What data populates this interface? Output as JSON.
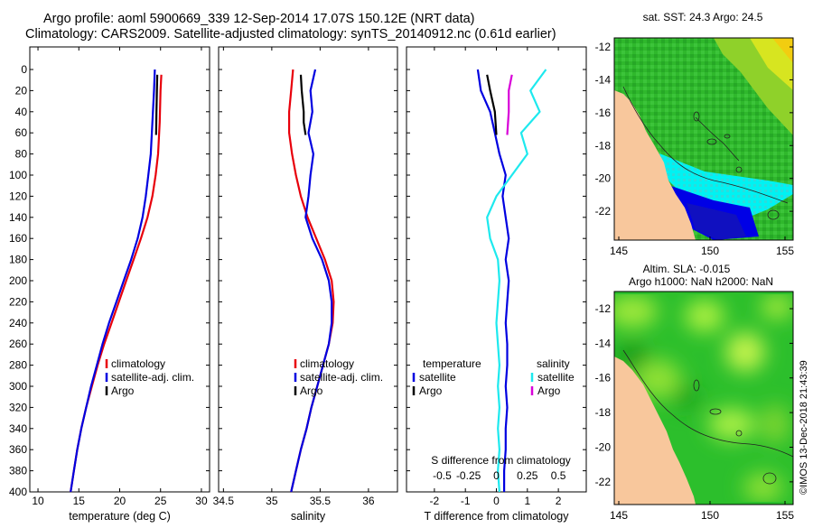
{
  "header": {
    "line1": "Argo profile: aoml 5900669_339 12-Sep-2014 17.07S 150.12E (NRT data)",
    "line2": "Climatology: CARS2009. Satellite-adjusted climatology: synTS_20140912.nc (0.61d earlier)"
  },
  "credit": "©IMOS 13-Dec-2018 21:43:39",
  "colors": {
    "climatology": "#e8000b",
    "satellite": "#0000e0",
    "argo": "#000000",
    "satellite_s": "#1de9ee",
    "argo_s": "#d800d8"
  },
  "depth_ticks": [
    0,
    20,
    40,
    60,
    80,
    100,
    120,
    140,
    160,
    180,
    200,
    220,
    240,
    260,
    280,
    300,
    320,
    340,
    360,
    380,
    400
  ],
  "chart_data": [
    {
      "id": "temperature",
      "type": "line",
      "xlabel": "temperature (deg C)",
      "xlim": [
        9,
        31
      ],
      "ylim": [
        0,
        400
      ],
      "xticks": [
        10,
        15,
        20,
        25,
        30
      ],
      "series": [
        {
          "name": "climatology",
          "color": "#e8000b",
          "x": [
            25.1,
            25.0,
            24.9,
            24.7,
            24.4,
            24.0,
            23.4,
            22.6,
            21.7,
            20.8,
            19.9,
            19.0,
            18.1,
            17.3,
            16.6,
            15.9,
            15.3,
            14.8,
            14.4,
            14.0
          ],
          "y": [
            5,
            20,
            50,
            80,
            100,
            120,
            140,
            160,
            180,
            200,
            220,
            240,
            260,
            280,
            300,
            320,
            340,
            360,
            380,
            400
          ]
        },
        {
          "name": "satellite-adj. clim.",
          "color": "#0000e0",
          "x": [
            24.3,
            24.2,
            24.0,
            23.8,
            23.5,
            23.2,
            22.8,
            22.2,
            21.4,
            20.5,
            19.6,
            18.7,
            17.9,
            17.2,
            16.5,
            15.9,
            15.3,
            14.8,
            14.4,
            14.0
          ],
          "y": [
            0,
            20,
            50,
            80,
            100,
            120,
            140,
            160,
            180,
            200,
            220,
            240,
            260,
            280,
            300,
            320,
            340,
            360,
            380,
            400
          ]
        },
        {
          "name": "Argo",
          "color": "#000000",
          "x": [
            24.6,
            24.55,
            24.5,
            24.45
          ],
          "y": [
            5,
            20,
            40,
            62
          ]
        }
      ],
      "legend": [
        "climatology",
        "satellite-adj. clim.",
        "Argo"
      ]
    },
    {
      "id": "salinity",
      "type": "line",
      "xlabel": "salinity",
      "xlim": [
        34.45,
        36.3
      ],
      "ylim": [
        0,
        400
      ],
      "xticks": [
        34.5,
        35,
        35.5,
        36
      ],
      "xticklabels": [
        "34.5",
        "35",
        "35.5",
        "36"
      ],
      "series": [
        {
          "name": "climatology",
          "color": "#e8000b",
          "x": [
            35.22,
            35.2,
            35.18,
            35.18,
            35.21,
            35.25,
            35.3,
            35.37,
            35.46,
            35.55,
            35.62,
            35.64,
            35.63,
            35.59,
            35.53,
            35.47,
            35.41,
            35.36,
            35.3,
            35.25,
            35.2
          ],
          "y": [
            0,
            20,
            40,
            60,
            80,
            100,
            120,
            140,
            160,
            180,
            200,
            220,
            240,
            260,
            280,
            300,
            320,
            340,
            360,
            380,
            400
          ]
        },
        {
          "name": "satellite-adj. clim.",
          "color": "#0000e0",
          "x": [
            35.45,
            35.4,
            35.42,
            35.38,
            35.43,
            35.4,
            35.38,
            35.35,
            35.42,
            35.52,
            35.59,
            35.62,
            35.62,
            35.59,
            35.53,
            35.47,
            35.41,
            35.36,
            35.3,
            35.25,
            35.2
          ],
          "y": [
            0,
            20,
            40,
            60,
            80,
            100,
            120,
            140,
            160,
            180,
            200,
            220,
            240,
            260,
            280,
            300,
            320,
            340,
            360,
            380,
            400
          ]
        },
        {
          "name": "Argo",
          "color": "#000000",
          "x": [
            35.3,
            35.31,
            35.33,
            35.33,
            35.35
          ],
          "y": [
            5,
            20,
            40,
            50,
            62
          ]
        }
      ],
      "legend": [
        "climatology",
        "satellite-adj. clim.",
        "Argo"
      ]
    },
    {
      "id": "difference",
      "type": "line",
      "xlabel": "T difference from climatology",
      "xlabel_top": "S difference from climatology",
      "xlim": [
        -2.9,
        2.9
      ],
      "ylim": [
        0,
        400
      ],
      "xticks": [
        -2,
        -1,
        0,
        1,
        2
      ],
      "top_ticks": [
        {
          "pos": -1.75,
          "label": "-0.5"
        },
        {
          "pos": -0.9,
          "label": "-0.25"
        },
        {
          "pos": 0,
          "label": "0"
        },
        {
          "pos": 1,
          "label": "0.25"
        },
        {
          "pos": 2,
          "label": "0.5"
        }
      ],
      "series": [
        {
          "name": "temperature satellite",
          "color": "#0000e0",
          "x": [
            -0.6,
            -0.5,
            -0.2,
            -0.05,
            0.1,
            0.3,
            0.2,
            0.3,
            0.4,
            0.3,
            0.4,
            0.35,
            0.3,
            0.35,
            0.35,
            0.3,
            0.35,
            0.3,
            0.3,
            0.25,
            0.25
          ],
          "y": [
            0,
            20,
            40,
            60,
            80,
            100,
            120,
            140,
            160,
            180,
            200,
            220,
            240,
            260,
            280,
            300,
            320,
            340,
            360,
            380,
            400
          ]
        },
        {
          "name": "temperature Argo",
          "color": "#000000",
          "x": [
            -0.3,
            -0.2,
            -0.05,
            0.0
          ],
          "y": [
            5,
            20,
            40,
            62
          ]
        },
        {
          "name": "salinity satellite",
          "color": "#1de9ee",
          "x": [
            1.6,
            1.1,
            1.4,
            0.8,
            1.0,
            0.5,
            0.0,
            -0.3,
            -0.2,
            0.05,
            0.1,
            0.05,
            0.0,
            0.05,
            0.1,
            0.05,
            0.1,
            0.05,
            0.1,
            0.05,
            0.1
          ],
          "y": [
            0,
            20,
            40,
            60,
            80,
            100,
            120,
            140,
            160,
            180,
            200,
            220,
            240,
            260,
            280,
            300,
            320,
            340,
            360,
            380,
            400
          ]
        },
        {
          "name": "salinity Argo",
          "color": "#d800d8",
          "x": [
            0.5,
            0.4,
            0.4,
            0.35
          ],
          "y": [
            5,
            20,
            40,
            62
          ]
        }
      ],
      "legend_temperature_title": "temperature",
      "legend_salinity_title": "salinity",
      "legend": [
        "satellite",
        "Argo",
        "satellite",
        "Argo"
      ]
    }
  ],
  "maps": {
    "sst": {
      "title": "sat. SST: 24.3 Argo: 24.5",
      "xticks": [
        "145",
        "150",
        "155"
      ],
      "yticks": [
        "-12",
        "-14",
        "-16",
        "-18",
        "-20",
        "-22"
      ]
    },
    "sla": {
      "title1": "Altim. SLA: -0.015",
      "title2": "Argo h1000: NaN h2000: NaN",
      "xticks": [
        "145",
        "150",
        "155"
      ],
      "yticks": [
        "-12",
        "-14",
        "-16",
        "-18",
        "-20",
        "-22"
      ]
    }
  }
}
